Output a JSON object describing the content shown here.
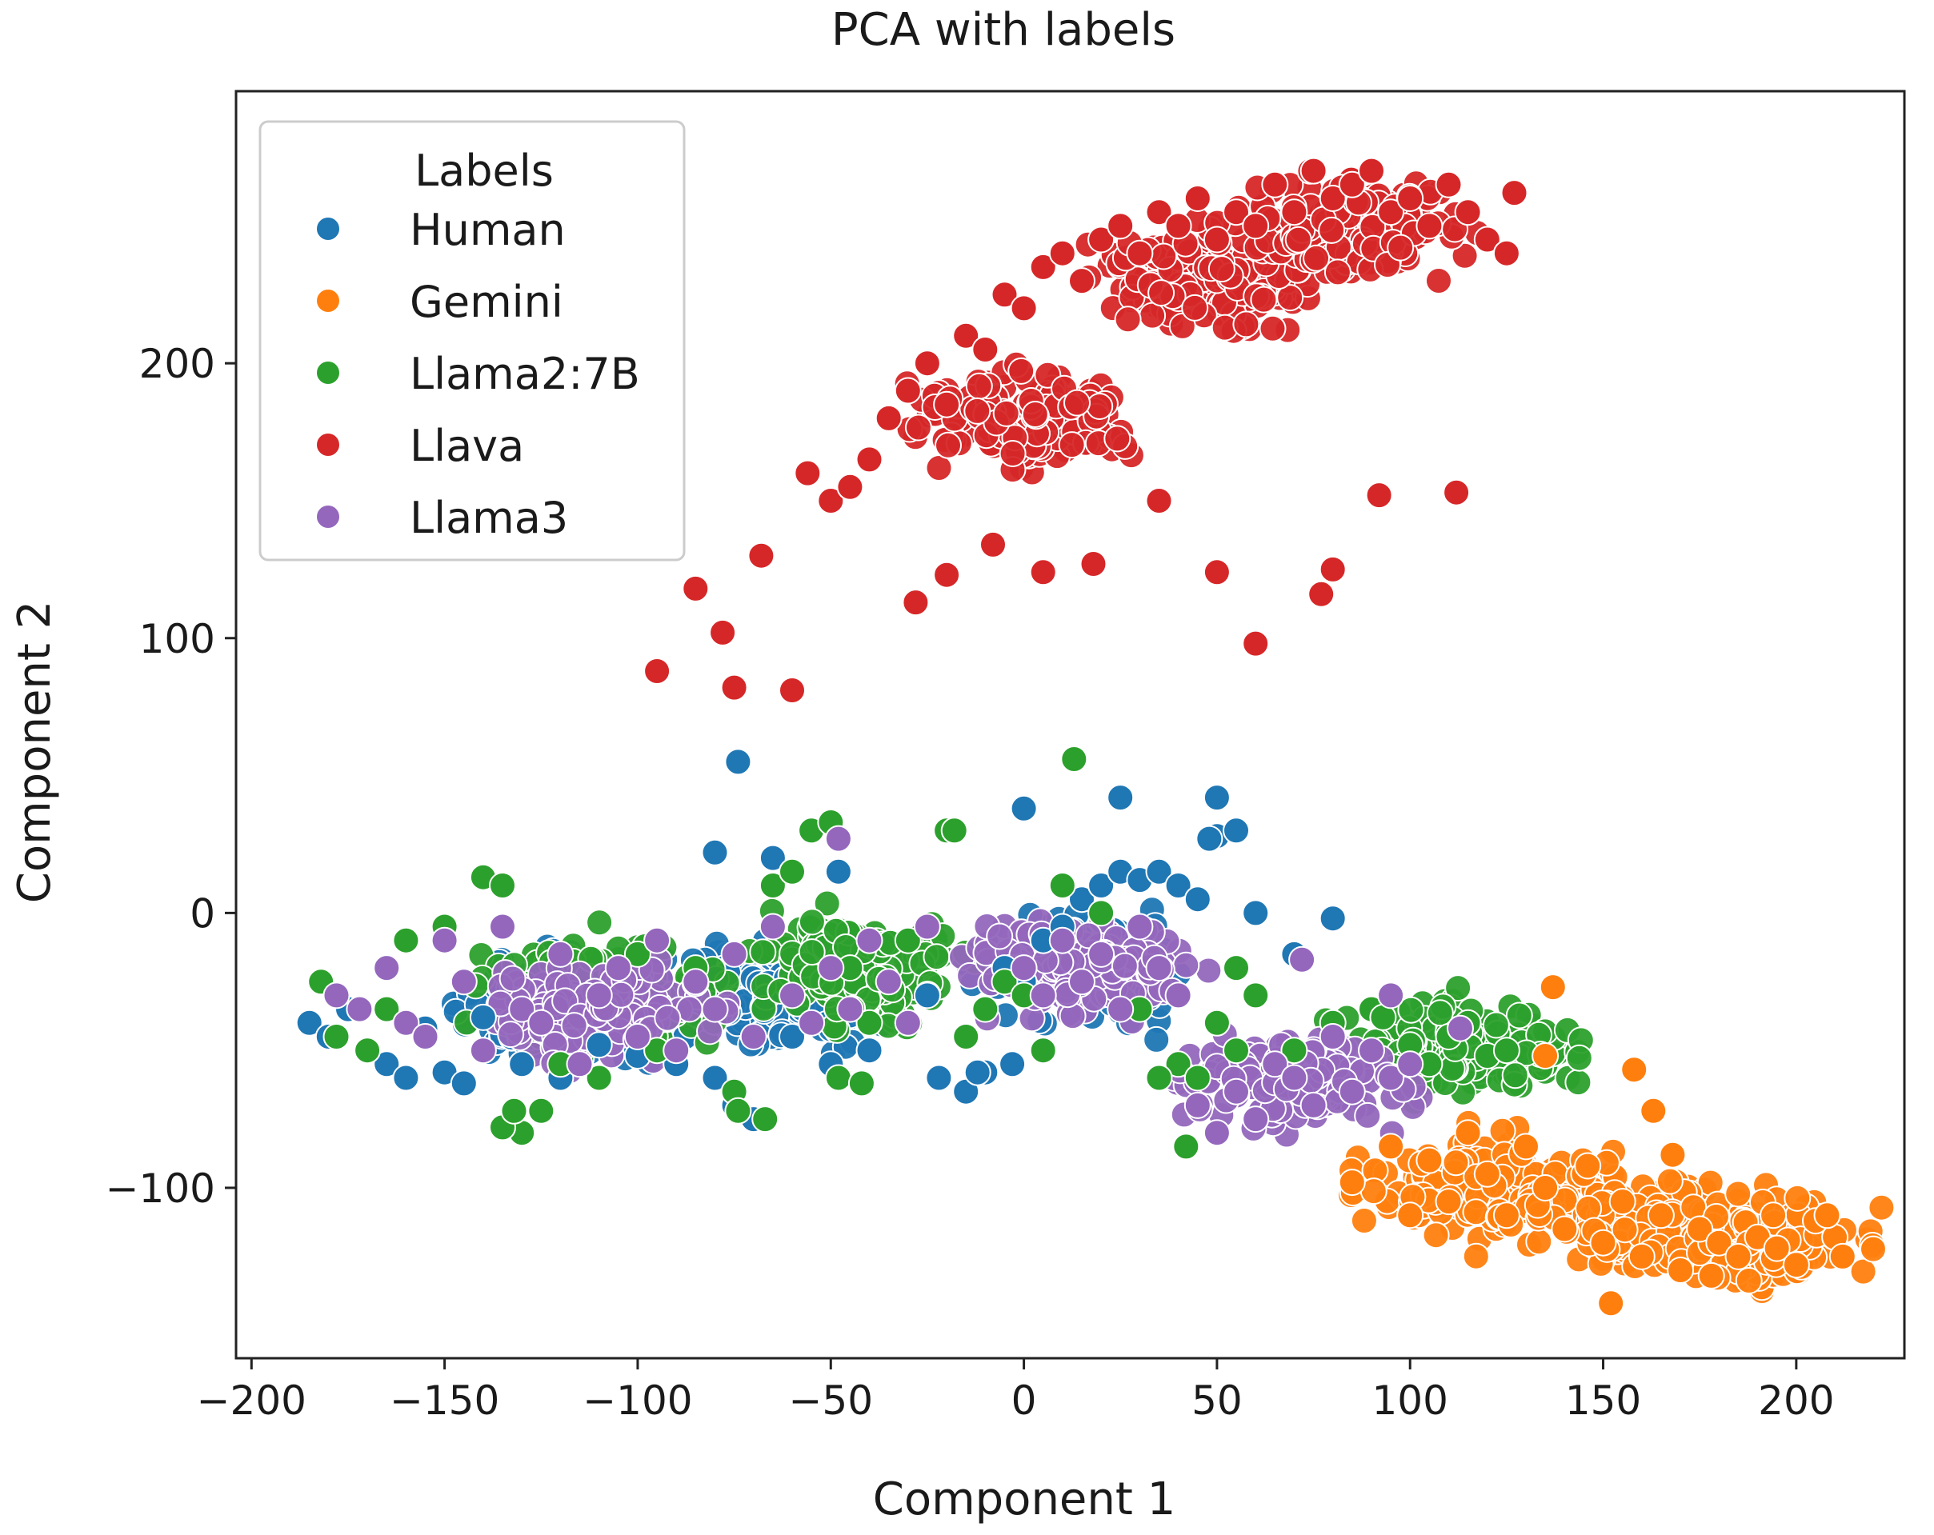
{
  "chart_data": {
    "type": "scatter",
    "title": "PCA with labels",
    "xlabel": "Component 1",
    "ylabel": "Component 2",
    "xlim": [
      -204,
      228
    ],
    "ylim": [
      -162,
      299
    ],
    "xticks": [
      -200,
      -150,
      -100,
      -50,
      0,
      50,
      100,
      150,
      200
    ],
    "xtick_labels": [
      "−200",
      "−150",
      "−100",
      "−50",
      "0",
      "50",
      "100",
      "150",
      "200"
    ],
    "yticks": [
      -100,
      0,
      100,
      200
    ],
    "ytick_labels": [
      "−100",
      "0",
      "100",
      "200"
    ],
    "grid": false,
    "legend": {
      "title": "Labels",
      "position": "top-left"
    },
    "series": [
      {
        "name": "Human",
        "color": "#1f77b4",
        "cluster_centers": [
          [
            -120,
            -35
          ],
          [
            -70,
            -30
          ],
          [
            15,
            -20
          ]
        ],
        "x": [
          -185,
          -180,
          -175,
          -170,
          -165,
          -160,
          -155,
          -150,
          -145,
          -140,
          -130,
          -120,
          -110,
          -100,
          -90,
          -80,
          -75,
          -70,
          -60,
          -50,
          -40,
          -30,
          -25,
          -15,
          -10,
          -5,
          0,
          5,
          10,
          15,
          20,
          25,
          30,
          35,
          40,
          45,
          50,
          55,
          60,
          70,
          80,
          -74,
          0,
          25,
          50,
          48,
          -80,
          -65,
          -48,
          -12,
          -22,
          -3
        ],
        "y": [
          -40,
          -45,
          -35,
          -50,
          -55,
          -60,
          -42,
          -58,
          -62,
          -38,
          -55,
          -60,
          -48,
          -52,
          -55,
          -60,
          -70,
          -75,
          -45,
          -55,
          -50,
          -40,
          -30,
          -65,
          -58,
          -20,
          -25,
          -10,
          -5,
          5,
          10,
          15,
          12,
          15,
          10,
          5,
          28,
          30,
          0,
          -15,
          -2,
          55,
          38,
          42,
          42,
          27,
          22,
          20,
          15,
          -58,
          -60,
          -55
        ]
      },
      {
        "name": "Gemini",
        "color": "#ff7f0e",
        "cluster_centers": [
          [
            120,
            -100
          ],
          [
            160,
            -112
          ],
          [
            190,
            -120
          ]
        ],
        "x": [
          105,
          110,
          115,
          120,
          125,
          130,
          135,
          140,
          145,
          150,
          155,
          160,
          165,
          170,
          175,
          180,
          185,
          190,
          195,
          200,
          205,
          210,
          152,
          135,
          137,
          158,
          163,
          85,
          95,
          100,
          208,
          212,
          178,
          146,
          168
        ],
        "y": [
          -90,
          -105,
          -80,
          -95,
          -110,
          -85,
          -100,
          -115,
          -95,
          -120,
          -105,
          -125,
          -110,
          -130,
          -115,
          -120,
          -125,
          -118,
          -122,
          -128,
          -112,
          -118,
          -142,
          -52,
          -27,
          -57,
          -72,
          -98,
          -85,
          -110,
          -110,
          -125,
          -132,
          -92,
          -88
        ]
      },
      {
        "name": "Llama2:7B",
        "color": "#2ca02c",
        "cluster_centers": [
          [
            -110,
            -30
          ],
          [
            -40,
            -20
          ],
          [
            115,
            -50
          ]
        ],
        "x": [
          -182,
          -178,
          -170,
          -165,
          -160,
          -150,
          -140,
          -135,
          -130,
          -125,
          -120,
          -110,
          -100,
          -95,
          -85,
          -75,
          -65,
          -60,
          -55,
          -50,
          -45,
          -40,
          -30,
          -20,
          -15,
          -5,
          0,
          5,
          10,
          20,
          30,
          40,
          45,
          50,
          55,
          60,
          70,
          80,
          90,
          100,
          105,
          110,
          115,
          120,
          125,
          13,
          -18,
          -135,
          -132,
          -74,
          -67,
          -48,
          -42,
          -10,
          35,
          42,
          55,
          93
        ],
        "y": [
          -25,
          -45,
          -50,
          -35,
          -10,
          -5,
          13,
          10,
          -80,
          -72,
          -55,
          -60,
          -15,
          -50,
          -20,
          -65,
          10,
          15,
          30,
          33,
          -20,
          -40,
          -10,
          30,
          -45,
          -25,
          -30,
          -50,
          10,
          0,
          -35,
          -55,
          -60,
          -40,
          -20,
          -30,
          -50,
          -40,
          -35,
          -48,
          -55,
          -45,
          -40,
          -52,
          -50,
          56,
          30,
          -78,
          -72,
          -72,
          -75,
          -60,
          -62,
          -35,
          -60,
          -85,
          -50,
          -38
        ]
      },
      {
        "name": "Llava",
        "color": "#d62728",
        "cluster_centers": [
          [
            0,
            180
          ],
          [
            50,
            230
          ],
          [
            85,
            250
          ]
        ],
        "x": [
          -95,
          -85,
          -78,
          -75,
          -68,
          -60,
          -56,
          -50,
          -45,
          -40,
          -35,
          -30,
          -25,
          -20,
          -15,
          -10,
          -5,
          0,
          5,
          10,
          15,
          20,
          25,
          30,
          35,
          40,
          45,
          50,
          55,
          60,
          65,
          70,
          75,
          80,
          85,
          90,
          95,
          100,
          105,
          110,
          115,
          120,
          125,
          127,
          60,
          5,
          18,
          80,
          77,
          50,
          92,
          112,
          -28,
          -20,
          -8,
          35
        ],
        "y": [
          88,
          118,
          102,
          82,
          130,
          81,
          160,
          150,
          155,
          165,
          180,
          190,
          200,
          185,
          210,
          205,
          225,
          220,
          235,
          240,
          230,
          245,
          250,
          240,
          255,
          250,
          260,
          245,
          255,
          250,
          265,
          255,
          270,
          260,
          265,
          270,
          255,
          260,
          250,
          265,
          255,
          245,
          240,
          262,
          98,
          124,
          127,
          125,
          116,
          124,
          152,
          153,
          113,
          123,
          134,
          150
        ]
      },
      {
        "name": "Llama3",
        "color": "#9467bd",
        "cluster_centers": [
          [
            -110,
            -35
          ],
          [
            15,
            -20
          ],
          [
            70,
            -60
          ]
        ],
        "x": [
          -178,
          -172,
          -165,
          -160,
          -155,
          -150,
          -145,
          -140,
          -135,
          -130,
          -125,
          -120,
          -115,
          -110,
          -105,
          -100,
          -95,
          -90,
          -85,
          -80,
          -75,
          -70,
          -65,
          -60,
          -55,
          -50,
          -45,
          -40,
          -35,
          -30,
          -25,
          0,
          5,
          10,
          15,
          20,
          25,
          30,
          35,
          40,
          45,
          50,
          55,
          60,
          65,
          70,
          75,
          80,
          85,
          90,
          95,
          100,
          -48,
          95,
          113,
          72
        ],
        "y": [
          -30,
          -35,
          -20,
          -40,
          -45,
          -10,
          -25,
          -50,
          -5,
          -35,
          -40,
          -15,
          -55,
          -30,
          -20,
          -45,
          -10,
          -50,
          -25,
          -35,
          -15,
          -45,
          -5,
          -30,
          -40,
          -20,
          -35,
          -10,
          -25,
          -40,
          -5,
          -20,
          -30,
          -10,
          -25,
          -15,
          -35,
          -5,
          -20,
          -30,
          -70,
          -80,
          -65,
          -75,
          -55,
          -60,
          -70,
          -45,
          -65,
          -50,
          -60,
          -55,
          27,
          -30,
          -42,
          -17
        ]
      }
    ]
  }
}
